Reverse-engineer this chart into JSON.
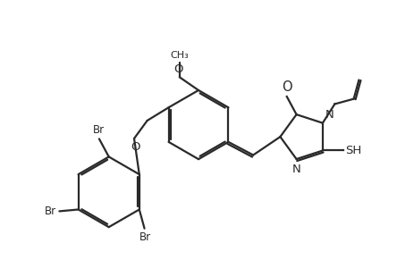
{
  "background_color": "#ffffff",
  "line_color": "#2a2a2a",
  "line_width": 1.6,
  "font_size": 8.5,
  "figsize": [
    4.44,
    3.1
  ],
  "dpi": 100,
  "xlim": [
    0,
    11
  ],
  "ylim": [
    0,
    8
  ]
}
